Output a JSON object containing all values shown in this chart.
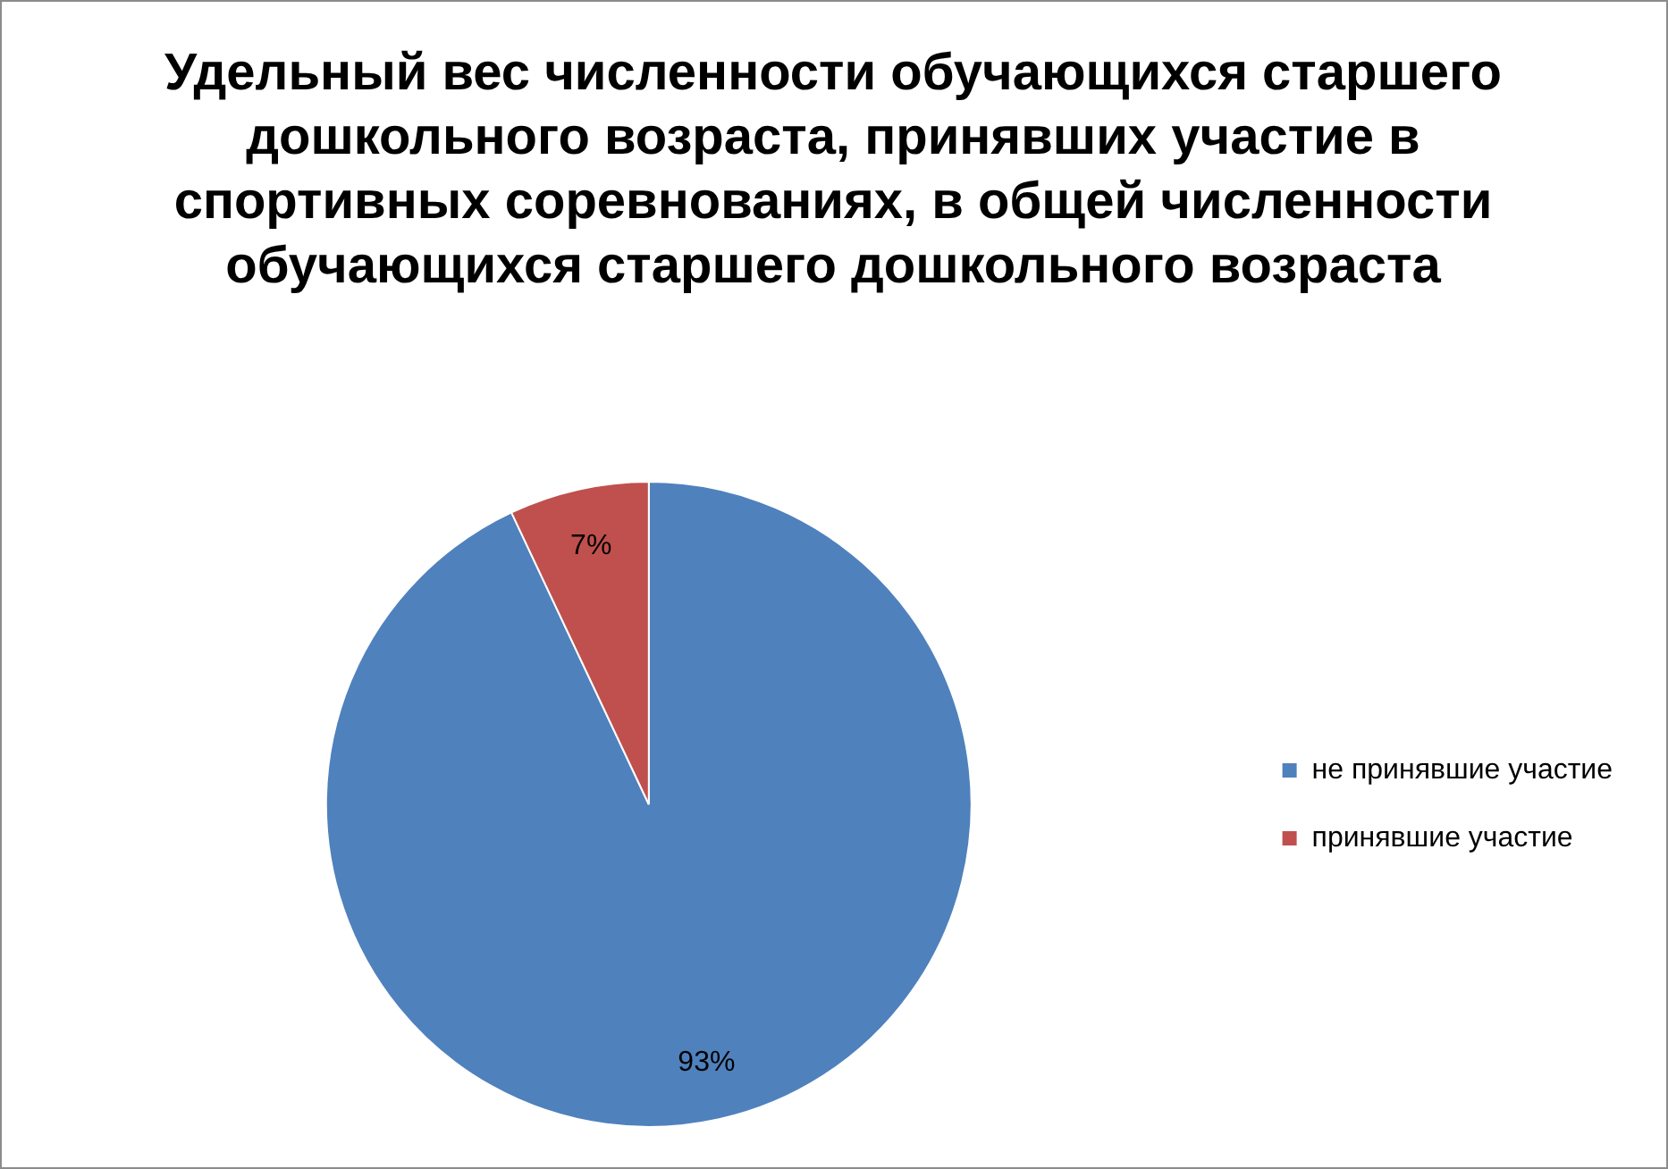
{
  "chart_data": {
    "type": "pie",
    "title": "Удельный вес численности обучающихся старшего дошкольного возраста, принявших участие в спортивных соревнованиях, в общей численности обучающихся старшего дошкольного возраста",
    "categories": [
      "не принявшие участие",
      "принявшие участие"
    ],
    "values": [
      93,
      7
    ],
    "colors": [
      "#4f81bd",
      "#c0504d"
    ],
    "value_labels": [
      "93%",
      "7%"
    ],
    "legend": "right"
  }
}
